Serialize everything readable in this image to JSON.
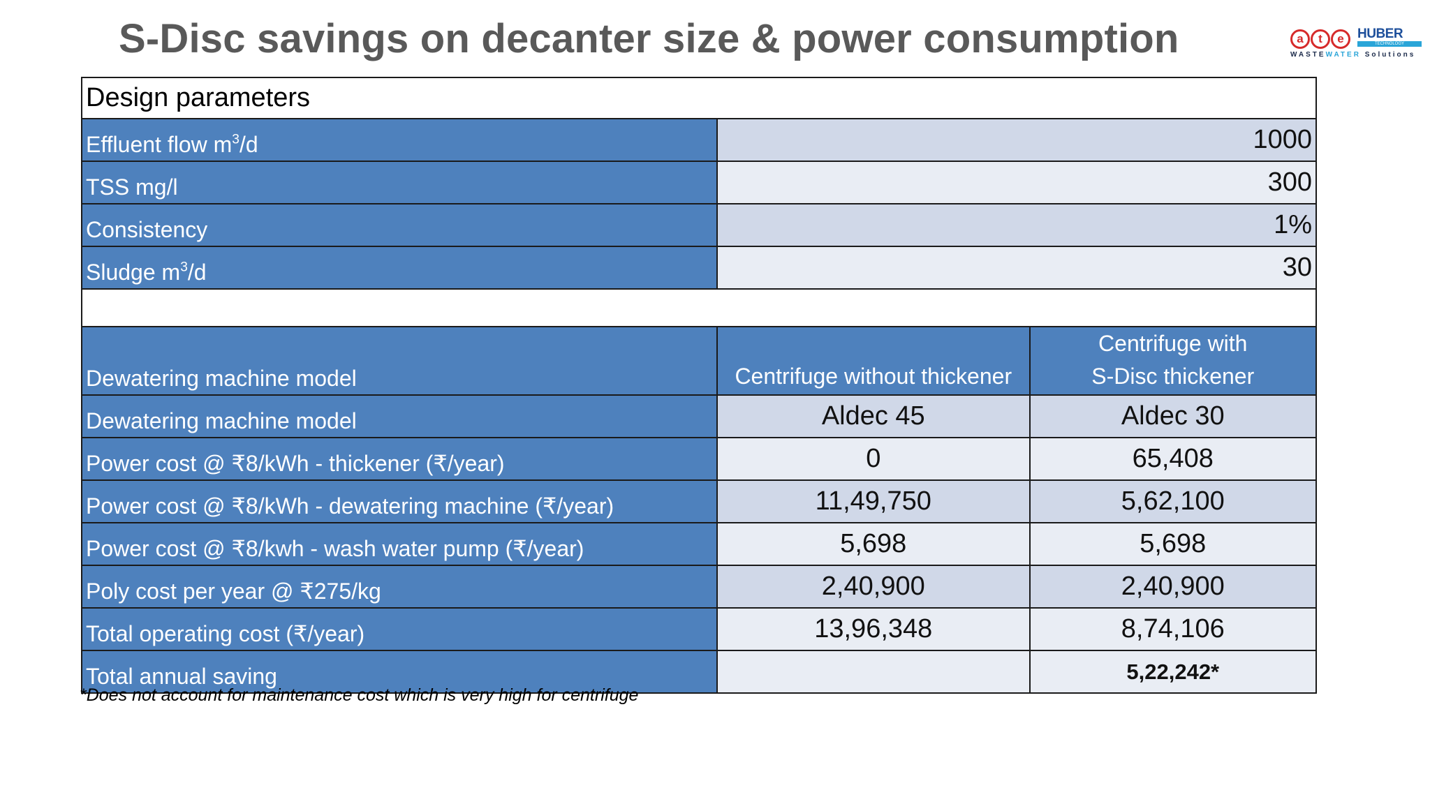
{
  "title": "S-Disc savings on decanter size & power consumption",
  "logo": {
    "ate_letters": [
      "a",
      "t",
      "e"
    ],
    "huber": "HUBER",
    "huber_sub": "TECHNOLOGY",
    "tagline_prefix": "WASTE",
    "tagline_water": "WATER",
    "tagline_suffix": " Solutions"
  },
  "design": {
    "heading": "Design parameters",
    "rows": [
      {
        "label_pre": "Effluent flow m",
        "sup": "3",
        "label_post": "/d",
        "value": "1000"
      },
      {
        "label_pre": "TSS mg/l",
        "sup": "",
        "label_post": "",
        "value": "300"
      },
      {
        "label_pre": "Consistency",
        "sup": "",
        "label_post": "",
        "value": "1%"
      },
      {
        "label_pre": "Sludge m",
        "sup": "3",
        "label_post": "/d",
        "value": "30"
      }
    ]
  },
  "comparison": {
    "header_label": "Dewatering machine model",
    "col1": "Centrifuge without thickener",
    "col2_line1": "Centrifuge with",
    "col2_line2": "S-Disc thickener",
    "rows": [
      {
        "label": "Dewatering machine model",
        "v1": "Aldec 45",
        "v2": "Aldec 30"
      },
      {
        "label": "Power cost @ ₹8/kWh - thickener (₹/year)",
        "v1": "0",
        "v2": "65,408"
      },
      {
        "label": "Power cost @ ₹8/kWh - dewatering machine (₹/year)",
        "v1": "11,49,750",
        "v2": "5,62,100"
      },
      {
        "label": "Power cost @ ₹8/kwh - wash water pump (₹/year)",
        "v1": "5,698",
        "v2": "5,698"
      },
      {
        "label": "Poly cost per year @ ₹275/kg",
        "v1": "2,40,900",
        "v2": "2,40,900"
      },
      {
        "label": "Total operating cost (₹/year)",
        "v1": "13,96,348",
        "v2": "8,74,106"
      }
    ],
    "saving_label": "Total annual saving",
    "saving_v1": "",
    "saving_v2": "5,22,242*"
  },
  "footnote": "*Does not account for maintenance cost which is very high for centrifuge"
}
